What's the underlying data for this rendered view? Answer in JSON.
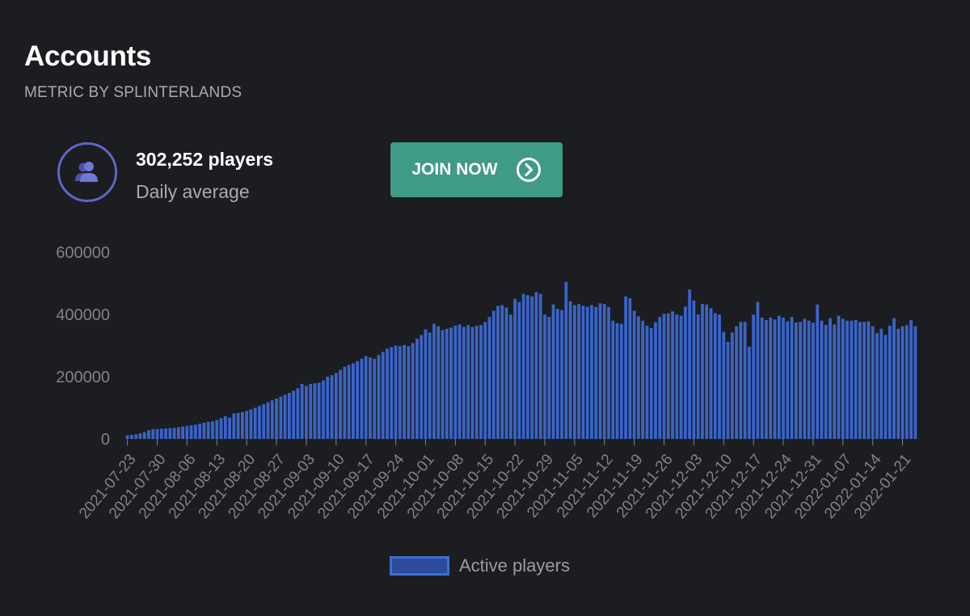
{
  "header": {
    "title": "Accounts",
    "subtitle": "METRIC BY SPLINTERLANDS"
  },
  "stat": {
    "icon": "users-icon",
    "value": "302,252 players",
    "label": "Daily average"
  },
  "join_button": {
    "label": "JOIN NOW",
    "icon": "chevron-right-circle-icon",
    "color": "#3f9a86"
  },
  "colors": {
    "bar_fill": "#3a64c8",
    "legend_fill": "#2b4a9b",
    "legend_border": "#3e6fd0",
    "icon_ring": "#5d66c4"
  },
  "chart_data": {
    "type": "bar",
    "start_date": "2021-07-23",
    "x_tick_labels": [
      "2021-07-23",
      "2021-07-30",
      "2021-08-06",
      "2021-08-13",
      "2021-08-20",
      "2021-08-27",
      "2021-09-03",
      "2021-09-10",
      "2021-09-17",
      "2021-09-24",
      "2021-10-01",
      "2021-10-08",
      "2021-10-15",
      "2021-10-22",
      "2021-10-29",
      "2021-11-05",
      "2021-11-12",
      "2021-11-19",
      "2021-11-26",
      "2021-12-03",
      "2021-12-10",
      "2021-12-17",
      "2021-12-24",
      "2021-12-31",
      "2022-01-07",
      "2022-01-14",
      "2022-01-21"
    ],
    "y_ticks": [
      0,
      200000,
      400000,
      600000
    ],
    "ylim": [
      0,
      600000
    ],
    "legend": [
      "Active players"
    ],
    "legend_position": "bottom",
    "grid": false,
    "series": [
      {
        "name": "Active players",
        "values": [
          12000,
          13000,
          15000,
          18000,
          22000,
          28000,
          31000,
          32000,
          33000,
          34000,
          35000,
          36000,
          38000,
          40000,
          42000,
          44000,
          46000,
          49000,
          52000,
          55000,
          57000,
          61000,
          67000,
          73000,
          68000,
          82000,
          84000,
          86000,
          90000,
          95000,
          100000,
          106000,
          112000,
          118000,
          124000,
          130000,
          136000,
          142000,
          148000,
          155000,
          163000,
          177000,
          170000,
          177000,
          179000,
          181000,
          188000,
          200000,
          205000,
          212000,
          222000,
          232000,
          238000,
          243000,
          250000,
          258000,
          266000,
          262000,
          258000,
          270000,
          280000,
          290000,
          295000,
          300000,
          298000,
          302000,
          298000,
          308000,
          322000,
          334000,
          352000,
          342000,
          370000,
          362000,
          350000,
          354000,
          358000,
          364000,
          368000,
          360000,
          366000,
          360000,
          364000,
          366000,
          376000,
          392000,
          412000,
          428000,
          430000,
          422000,
          400000,
          450000,
          440000,
          466000,
          462000,
          458000,
          472000,
          466000,
          400000,
          392000,
          432000,
          418000,
          414000,
          505000,
          442000,
          430000,
          434000,
          428000,
          425000,
          430000,
          424000,
          436000,
          434000,
          424000,
          380000,
          372000,
          370000,
          458000,
          452000,
          412000,
          394000,
          380000,
          364000,
          356000,
          375000,
          392000,
          402000,
          404000,
          410000,
          400000,
          396000,
          425000,
          480000,
          445000,
          400000,
          434000,
          432000,
          420000,
          404000,
          400000,
          344000,
          312000,
          342000,
          362000,
          376000,
          376000,
          296000,
          400000,
          440000,
          390000,
          382000,
          390000,
          384000,
          396000,
          390000,
          378000,
          392000,
          374000,
          376000,
          386000,
          380000,
          374000,
          432000,
          380000,
          366000,
          388000,
          368000,
          396000,
          386000,
          380000,
          380000,
          382000,
          376000,
          376000,
          378000,
          362000,
          340000,
          354000,
          334000,
          364000,
          388000,
          354000,
          362000,
          366000,
          382000,
          362000
        ]
      }
    ]
  }
}
